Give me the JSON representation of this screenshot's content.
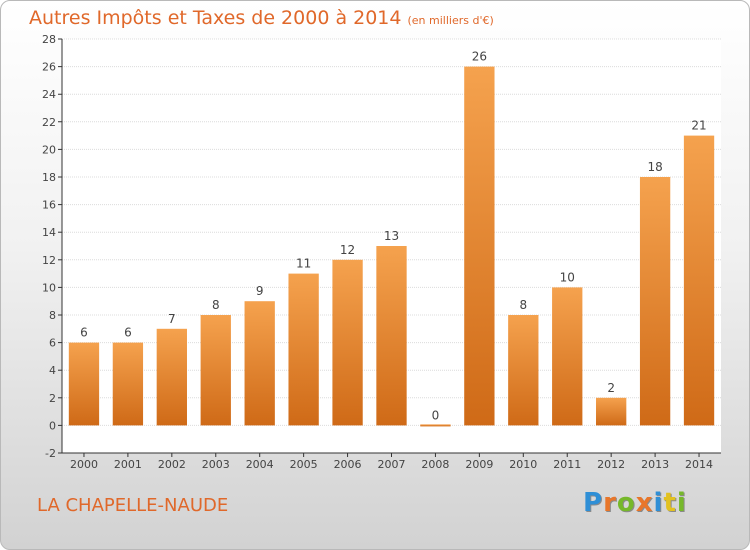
{
  "title": "Autres Impôts et Taxes de 2000 à 2014",
  "unit_note": "(en milliers d'€)",
  "commune": "LA CHAPELLE-NAUDE",
  "logo": {
    "letters": [
      "P",
      "r",
      "o",
      "x",
      "i",
      "t",
      "i"
    ],
    "colors": [
      "#2f8fd6",
      "#e8762a",
      "#76b82a",
      "#e8762a",
      "#2f8fd6",
      "#e2c120",
      "#76b82a"
    ]
  },
  "colors": {
    "bar_light": "#f5a24e",
    "bar_dark": "#cf6a17",
    "text_accent": "#e0682a"
  },
  "chart_data": {
    "type": "bar",
    "title": "Autres Impôts et Taxes de 2000 à 2014",
    "categories": [
      "2000",
      "2001",
      "2002",
      "2003",
      "2004",
      "2005",
      "2006",
      "2007",
      "2008",
      "2009",
      "2010",
      "2011",
      "2012",
      "2013",
      "2014"
    ],
    "values": [
      6,
      6,
      7,
      8,
      9,
      11,
      12,
      13,
      0,
      26,
      8,
      10,
      2,
      18,
      21
    ],
    "ylim": [
      -2,
      28
    ],
    "yticks": [
      -2,
      0,
      2,
      4,
      6,
      8,
      10,
      12,
      14,
      16,
      18,
      20,
      22,
      24,
      26,
      28
    ],
    "grid": true,
    "data_labels": true
  }
}
